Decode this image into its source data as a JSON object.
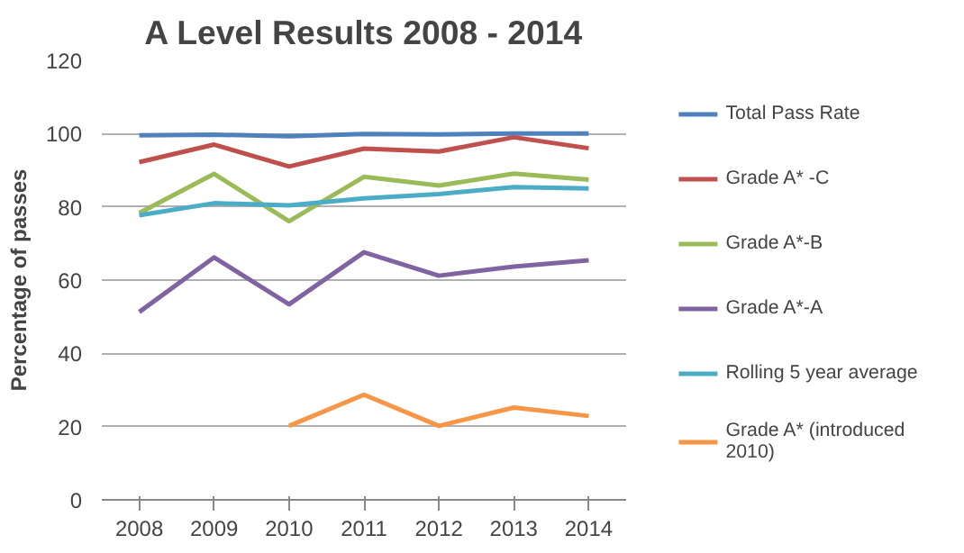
{
  "chart_data": {
    "type": "line",
    "title": "A Level Results 2008 - 2014",
    "ylabel": "Percentage of passes",
    "categories": [
      "2008",
      "2009",
      "2010",
      "2011",
      "2012",
      "2013",
      "2014"
    ],
    "series": [
      {
        "name": "Total Pass Rate",
        "color": "#4f81bd",
        "values": [
          99.5,
          99.7,
          99.3,
          99.9,
          99.8,
          100,
          100
        ]
      },
      {
        "name": "Grade A* -C",
        "color": "#c0504d",
        "values": [
          92.2,
          97,
          91,
          95.9,
          95.1,
          99,
          96
        ]
      },
      {
        "name": "Grade A*-B",
        "color": "#9bbb59",
        "values": [
          78.3,
          89,
          76.1,
          88.2,
          85.8,
          89.1,
          87.4
        ]
      },
      {
        "name": "Grade A*-A",
        "color": "#8064a2",
        "values": [
          51.3,
          66.2,
          53.4,
          67.6,
          61.2,
          63.7,
          65.4
        ]
      },
      {
        "name": "Rolling 5 year average",
        "color": "#4bacc6",
        "values": [
          77.7,
          81,
          80.4,
          82.3,
          83.5,
          85.4,
          85
        ]
      },
      {
        "name": "Grade A* (introduced 2010)",
        "color": "#f79646",
        "values": [
          null,
          null,
          20.2,
          28.7,
          20.2,
          25.2,
          22.9
        ]
      }
    ],
    "ylim": [
      0,
      120
    ],
    "yticks": [
      0,
      20,
      40,
      60,
      80,
      100,
      120
    ],
    "grid": "y",
    "legend": "right",
    "marker": "none",
    "line_style": "solid"
  }
}
